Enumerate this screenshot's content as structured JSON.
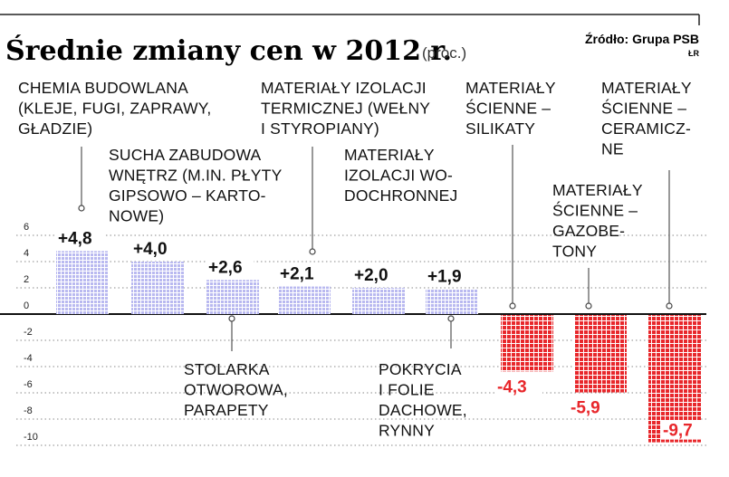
{
  "header": {
    "title": "Średnie zmiany cen w 2012 r.",
    "unit": "(proc.)",
    "source": "Źródło: Grupa PSB",
    "credit": "ŁR"
  },
  "chart_data": {
    "type": "bar",
    "title": "Średnie zmiany cen w 2012 r.",
    "subtitle": "(proc.)",
    "xlabel": "",
    "ylabel": "",
    "ylim": [
      -10,
      6
    ],
    "yticks": [
      6,
      4,
      2,
      0,
      -2,
      -4,
      -6,
      -8,
      -10
    ],
    "grid": true,
    "categories": [
      "CHEMIA BUDOWLANA (KLEJE, FUGI, ZAPRAWY, GŁADZIE)",
      "SUCHA ZABUDOWA WNĘTRZ (M.IN. PŁYTY GIPSOWO – KARTONOWE)",
      "STOLARKA OTWOROWA, PARAPETY",
      "MATERIAŁY IZOLACJI TERMICZNEJ (WEŁNY I STYROPIANY)",
      "MATERIAŁY IZOLACJI WODOCHRONNEJ",
      "POKRYCIA I FOLIE DACHOWE, RYNNY",
      "MATERIAŁY ŚCIENNE – SILIKATY",
      "MATERIAŁY ŚCIENNE – GAZOBETONY",
      "MATERIAŁY ŚCIENNE – CERAMICZNE"
    ],
    "category_lines": [
      [
        "CHEMIA  BUDOWLANA",
        "(KLEJE, FUGI, ZAPRAWY,",
        "GŁADZIE)"
      ],
      [
        "SUCHA ZABUDOWA",
        "WNĘTRZ (M.IN. PŁYTY",
        "GIPSOWO – KARTO-",
        "NOWE)"
      ],
      [
        "STOLARKA",
        "OTWOROWA,",
        "PARAPETY"
      ],
      [
        "MATERIAŁY IZOLACJI",
        "TERMICZNEJ (WEŁNY",
        "I STYROPIANY)"
      ],
      [
        "MATERIAŁY",
        "IZOLACJI WO-",
        "DOCHRONNEJ"
      ],
      [
        "POKRYCIA",
        "I FOLIE",
        "DACHOWE,",
        "RYNNY"
      ],
      [
        "MATERIAŁY",
        "ŚCIENNE –",
        "SILIKATY"
      ],
      [
        "MATERIAŁY",
        "ŚCIENNE –",
        "GAZOBE-",
        "TONY"
      ],
      [
        "MATERIAŁY",
        "ŚCIENNE –",
        "CERAMICZ-",
        "NE"
      ]
    ],
    "values": [
      4.8,
      4.0,
      2.6,
      2.1,
      2.0,
      1.9,
      -4.3,
      -5.9,
      -9.7
    ],
    "value_labels": [
      "+4,8",
      "+4,0",
      "+2,6",
      "+2,1",
      "+2,0",
      "+1,9",
      "-4,3",
      "-5,9",
      "-9,7"
    ],
    "colors": {
      "positive": "#b9b9f0",
      "negative": "#e8272b",
      "positive_label": "#111111",
      "negative_label": "#e8272b"
    }
  }
}
